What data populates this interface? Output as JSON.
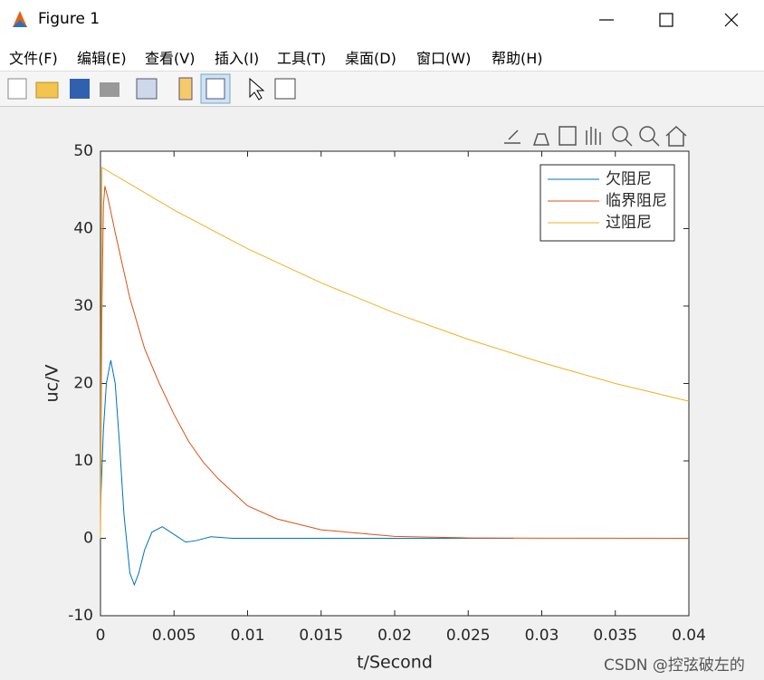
{
  "window": {
    "title": "Figure 1"
  },
  "menu": [
    "文件(F)",
    "编辑(E)",
    "查看(V)",
    "插入(I)",
    "工具(T)",
    "桌面(D)",
    "窗口(W)",
    "帮助(H)"
  ],
  "watermark": "CSDN @控弦破左的",
  "chart_data": {
    "type": "line",
    "xlabel": "t/Second",
    "ylabel": "uc/V",
    "xlim": [
      0,
      0.04
    ],
    "ylim": [
      -10,
      50
    ],
    "xticks": [
      0,
      0.005,
      0.01,
      0.015,
      0.02,
      0.025,
      0.03,
      0.035,
      0.04
    ],
    "yticks": [
      -10,
      0,
      10,
      20,
      30,
      40,
      50
    ],
    "legend": "northeast",
    "series": [
      {
        "name": "欠阻尼",
        "color": "#0072bd",
        "x": [
          0,
          0.0002,
          0.0004,
          0.0007,
          0.001,
          0.0013,
          0.0016,
          0.002,
          0.0023,
          0.0026,
          0.003,
          0.0035,
          0.0042,
          0.005,
          0.0058,
          0.0065,
          0.0075,
          0.009,
          0.012,
          0.02,
          0.0281
        ],
        "values": [
          4,
          14,
          20,
          23,
          20,
          12,
          3,
          -4.5,
          -6,
          -4.5,
          -1.5,
          0.8,
          1.5,
          0.5,
          -0.5,
          -0.3,
          0.2,
          0,
          0,
          0,
          0
        ]
      },
      {
        "name": "临界阻尼",
        "color": "#d95319",
        "x": [
          0,
          0.0001,
          0.0002,
          0.0003,
          0.0005,
          0.001,
          0.002,
          0.003,
          0.004,
          0.005,
          0.006,
          0.007,
          0.008,
          0.01,
          0.012,
          0.015,
          0.02,
          0.025,
          0.03,
          0.04
        ],
        "values": [
          0,
          30,
          43,
          45.5,
          44,
          39.5,
          31,
          24.5,
          20,
          16,
          12.5,
          9.8,
          7.7,
          4.2,
          2.5,
          1.1,
          0.25,
          0.05,
          0.01,
          0
        ]
      },
      {
        "name": "过阻尼",
        "color": "#edb120",
        "x": [
          0,
          0.0001,
          0.005,
          0.01,
          0.015,
          0.02,
          0.025,
          0.03,
          0.035,
          0.04
        ],
        "values": [
          0,
          47.9,
          42.4,
          37.4,
          33.0,
          29.1,
          25.7,
          22.7,
          20.0,
          17.7
        ]
      }
    ]
  }
}
